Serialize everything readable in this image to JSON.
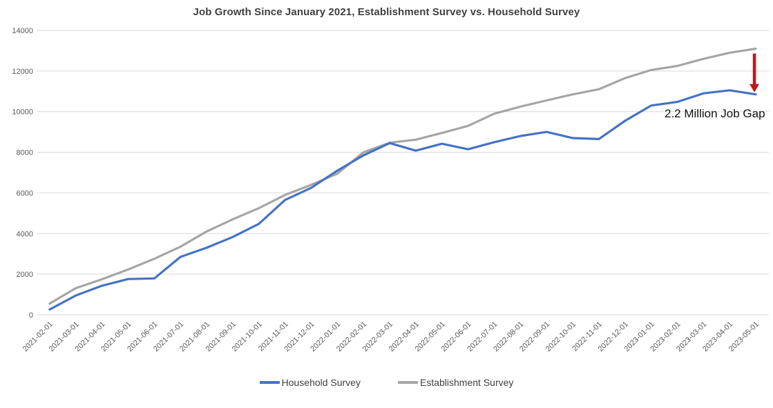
{
  "title": "Job Growth Since January 2021, Establishment Survey vs. Household Survey",
  "annotation": {
    "text": "2.2 Million Job Gap"
  },
  "colors": {
    "title_text": "#404040",
    "axis_labels": "#595959",
    "gridline": "#D9D9D9",
    "background": "#FFFFFF",
    "household_line": "#4472C4",
    "establishment_line": "#A5A5A5",
    "arrow": "#C01818",
    "annotation_text": "#111111",
    "legend_text": "#404040"
  },
  "chart_data": {
    "type": "line",
    "title": "Job Growth Since January 2021, Establishment Survey vs. Household Survey",
    "xlabel": "",
    "ylabel": "",
    "ylim": [
      0,
      14000
    ],
    "yticks": [
      0,
      2000,
      4000,
      6000,
      8000,
      10000,
      12000,
      14000
    ],
    "grid": true,
    "legend_position": "bottom",
    "categories": [
      "2021-02-01",
      "2021-03-01",
      "2021-04-01",
      "2021-05-01",
      "2021-06-01",
      "2021-07-01",
      "2021-08-01",
      "2021-09-01",
      "2021-10-01",
      "2021-11-01",
      "2021-12-01",
      "2022-01-01",
      "2022-02-01",
      "2022-03-01",
      "2022-04-01",
      "2022-05-01",
      "2022-06-01",
      "2022-07-01",
      "2022-08-01",
      "2022-09-01",
      "2022-10-01",
      "2022-11-01",
      "2022-12-01",
      "2023-01-01",
      "2023-02-01",
      "2023-03-01",
      "2023-04-01",
      "2023-05-01"
    ],
    "series": [
      {
        "name": "Household Survey",
        "color": "#4472C4",
        "values": [
          260,
          950,
          1430,
          1760,
          1790,
          2850,
          3300,
          3830,
          4480,
          5650,
          6250,
          7100,
          7850,
          8450,
          8080,
          8420,
          8150,
          8500,
          8800,
          9000,
          8700,
          8650,
          9550,
          10300,
          10480,
          10900,
          11050,
          10850
        ]
      },
      {
        "name": "Establishment Survey",
        "color": "#A5A5A5",
        "values": [
          550,
          1310,
          1750,
          2230,
          2760,
          3350,
          4100,
          4700,
          5250,
          5900,
          6400,
          6950,
          8000,
          8470,
          8620,
          8950,
          9300,
          9900,
          10250,
          10550,
          10850,
          11100,
          11650,
          12050,
          12250,
          12600,
          12900,
          13100
        ]
      }
    ],
    "annotation": {
      "text": "2.2 Million Job Gap",
      "at_category": "2023-05-01"
    }
  }
}
